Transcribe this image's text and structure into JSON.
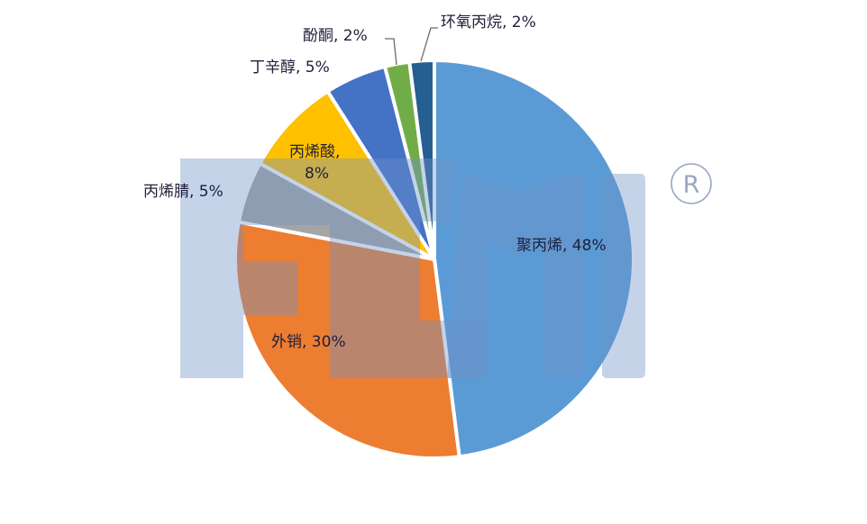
{
  "chart_data": {
    "type": "pie",
    "title": "",
    "start_angle_deg": 0,
    "direction": "clockwise",
    "slices": [
      {
        "label": "聚丙烯",
        "value": 48,
        "display": "聚丙烯, 48%",
        "color": "#5B9BD5"
      },
      {
        "label": "外销",
        "value": 30,
        "display": "外销, 30%",
        "color": "#ED7D31"
      },
      {
        "label": "丙烯腈",
        "value": 5,
        "display": "丙烯腈, 5%",
        "color": "#A5A5A5"
      },
      {
        "label": "丙烯酸",
        "value": 8,
        "display": "丙烯酸, 8%",
        "color": "#FFC000"
      },
      {
        "label": "丁辛醇",
        "value": 5,
        "display": "丁辛醇, 5%",
        "color": "#4472C4"
      },
      {
        "label": "酚酮",
        "value": 2,
        "display": "酚酮, 2%",
        "color": "#70AD47"
      },
      {
        "label": "环氧丙烷",
        "value": 2,
        "display": "环氧丙烷, 2%",
        "color": "#255E91"
      }
    ],
    "unit": "%",
    "legend": "none (data labels on slices)"
  },
  "labels": {
    "pp": "聚丙烯, 48%",
    "export": "外销, 30%",
    "acn": "丙烯腈, 5%",
    "aa_name": "丙烯酸,",
    "aa_pct": "8%",
    "oxo": "丁辛醇, 5%",
    "phenol": "酚酮, 2%",
    "po": "环氧丙烷, 2%"
  },
  "watermark": {
    "registered_mark": "R",
    "color": "#C5D3E8"
  }
}
